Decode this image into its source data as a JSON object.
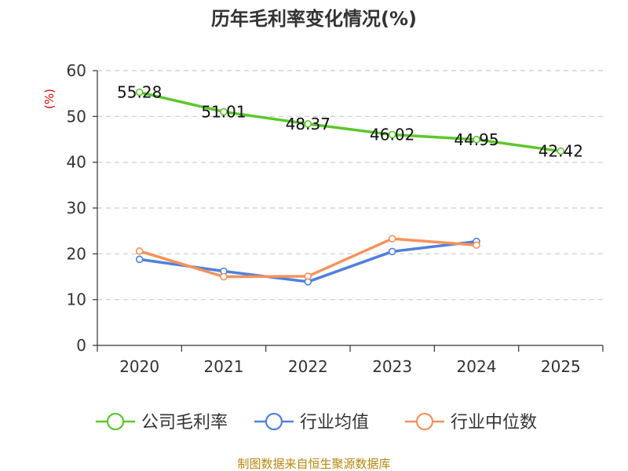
{
  "chart_data": {
    "type": "line",
    "title": "历年毛利率变化情况(%)",
    "ylabel": "(%)",
    "xlabel": "",
    "categories": [
      "2020",
      "2021",
      "2022",
      "2023",
      "2024",
      "2025"
    ],
    "ylim": [
      0,
      60
    ],
    "yticks": [
      0,
      10,
      20,
      30,
      40,
      50,
      60
    ],
    "grid": true,
    "legend_position": "bottom",
    "series": [
      {
        "name": "公司毛利率",
        "color": "#5cc72a",
        "values": [
          55.28,
          51.01,
          48.37,
          46.02,
          44.95,
          42.42
        ],
        "labels": [
          "55.28",
          "51.01",
          "48.37",
          "46.02",
          "44.95",
          "42.42"
        ]
      },
      {
        "name": "行业均值",
        "color": "#4f80dd",
        "values": [
          18.8,
          16.2,
          13.9,
          20.5,
          22.7,
          null
        ]
      },
      {
        "name": "行业中位数",
        "color": "#f5925a",
        "values": [
          20.6,
          15.0,
          15.1,
          23.3,
          21.9,
          null
        ]
      }
    ]
  },
  "footer": {
    "source": "制图数据来自恒生聚源数据库"
  }
}
